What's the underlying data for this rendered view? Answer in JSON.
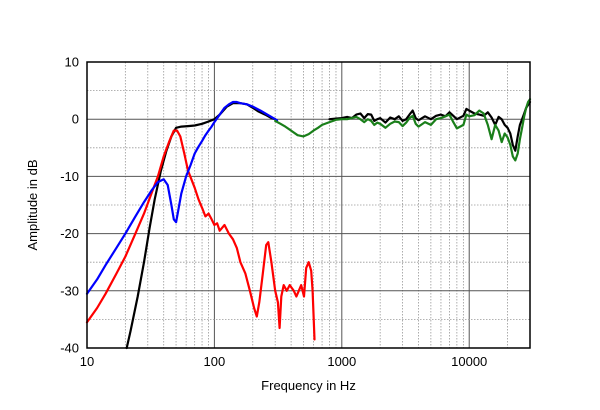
{
  "chart_data": {
    "type": "line",
    "title": "",
    "xlabel": "Frequency in Hz",
    "ylabel": "Amplitude in dB",
    "xscale": "log",
    "xlim": [
      10,
      30000
    ],
    "ylim": [
      -40,
      10
    ],
    "x_ticks": [
      {
        "value": 10,
        "label": "10"
      },
      {
        "value": 100,
        "label": "100"
      },
      {
        "value": 1000,
        "label": "1000"
      },
      {
        "value": 10000,
        "label": "10000"
      }
    ],
    "y_ticks": [
      {
        "value": 10,
        "label": "10"
      },
      {
        "value": 0,
        "label": "0"
      },
      {
        "value": -10,
        "label": "-10"
      },
      {
        "value": -20,
        "label": "-20"
      },
      {
        "value": -30,
        "label": "-30"
      },
      {
        "value": -40,
        "label": "-40"
      }
    ],
    "grid": true,
    "legend": "none",
    "series": [
      {
        "name": "black",
        "color": "#000000",
        "points": [
          [
            20.5,
            -40
          ],
          [
            22,
            -37
          ],
          [
            25,
            -31
          ],
          [
            28,
            -25
          ],
          [
            31,
            -19
          ],
          [
            34,
            -14
          ],
          [
            38,
            -9
          ],
          [
            42,
            -5.5
          ],
          [
            46,
            -3
          ],
          [
            50,
            -1.5
          ],
          [
            55,
            -1.3
          ],
          [
            62,
            -1.2
          ],
          [
            70,
            -1.1
          ],
          [
            80,
            -0.8
          ],
          [
            90,
            -0.4
          ],
          [
            100,
            0
          ],
          [
            110,
            0.8
          ],
          [
            125,
            2.2
          ],
          [
            140,
            2.8
          ],
          [
            160,
            2.8
          ],
          [
            180,
            2.6
          ],
          [
            200,
            2
          ],
          [
            220,
            1.4
          ],
          [
            250,
            0.8
          ],
          [
            280,
            0.2
          ],
          [
            300,
            0
          ]
        ]
      },
      {
        "name": "red",
        "color": "#ff0000",
        "points": [
          [
            10,
            -35.5
          ],
          [
            12,
            -33
          ],
          [
            14,
            -30.5
          ],
          [
            17,
            -27
          ],
          [
            20,
            -24
          ],
          [
            24,
            -20
          ],
          [
            28,
            -16.5
          ],
          [
            32,
            -13
          ],
          [
            36,
            -10
          ],
          [
            40,
            -6.5
          ],
          [
            44,
            -4
          ],
          [
            48,
            -2
          ],
          [
            51,
            -2
          ],
          [
            54,
            -3
          ],
          [
            58,
            -6
          ],
          [
            62,
            -9
          ],
          [
            66,
            -10.5
          ],
          [
            70,
            -12
          ],
          [
            75,
            -14
          ],
          [
            80,
            -15.5
          ],
          [
            85,
            -17
          ],
          [
            90,
            -16.5
          ],
          [
            95,
            -17.5
          ],
          [
            100,
            -18.5
          ],
          [
            105,
            -18.2
          ],
          [
            110,
            -19.5
          ],
          [
            120,
            -18.5
          ],
          [
            130,
            -20
          ],
          [
            140,
            -21
          ],
          [
            150,
            -22.5
          ],
          [
            160,
            -25
          ],
          [
            175,
            -27
          ],
          [
            190,
            -30
          ],
          [
            205,
            -33
          ],
          [
            215,
            -34.5
          ],
          [
            225,
            -32
          ],
          [
            240,
            -27
          ],
          [
            255,
            -22
          ],
          [
            265,
            -21.5
          ],
          [
            280,
            -25
          ],
          [
            300,
            -30
          ],
          [
            315,
            -32
          ],
          [
            325,
            -36.5
          ],
          [
            335,
            -31
          ],
          [
            350,
            -29
          ],
          [
            370,
            -30
          ],
          [
            390,
            -29
          ],
          [
            420,
            -30
          ],
          [
            440,
            -31
          ],
          [
            460,
            -30
          ],
          [
            480,
            -29
          ],
          [
            505,
            -31
          ],
          [
            525,
            -26
          ],
          [
            550,
            -25
          ],
          [
            575,
            -26.5
          ],
          [
            590,
            -30
          ],
          [
            600,
            -34
          ],
          [
            610,
            -38.5
          ]
        ]
      },
      {
        "name": "blue",
        "color": "#0000ff",
        "points": [
          [
            10,
            -30.5
          ],
          [
            12,
            -28
          ],
          [
            14,
            -25.5
          ],
          [
            17,
            -22.5
          ],
          [
            20,
            -20
          ],
          [
            24,
            -17
          ],
          [
            28,
            -14.5
          ],
          [
            32,
            -12.5
          ],
          [
            36,
            -11
          ],
          [
            40,
            -10.5
          ],
          [
            43,
            -11.5
          ],
          [
            46,
            -15
          ],
          [
            48,
            -17.5
          ],
          [
            50,
            -18
          ],
          [
            52,
            -16
          ],
          [
            55,
            -13
          ],
          [
            60,
            -10
          ],
          [
            65,
            -8
          ],
          [
            70,
            -6
          ],
          [
            75,
            -4.8
          ],
          [
            80,
            -3.8
          ],
          [
            85,
            -2.8
          ],
          [
            90,
            -2
          ],
          [
            95,
            -1.3
          ],
          [
            100,
            -0.5
          ],
          [
            110,
            0.8
          ],
          [
            120,
            2
          ],
          [
            130,
            2.6
          ],
          [
            140,
            3
          ],
          [
            150,
            3
          ],
          [
            160,
            2.8
          ],
          [
            180,
            2.6
          ],
          [
            200,
            2.2
          ],
          [
            230,
            1.5
          ],
          [
            260,
            0.8
          ],
          [
            290,
            0.2
          ],
          [
            310,
            -0.2
          ]
        ]
      },
      {
        "name": "black-high",
        "color": "#000000",
        "points": [
          [
            800,
            0
          ],
          [
            900,
            0.1
          ],
          [
            1000,
            0.2
          ],
          [
            1100,
            0.4
          ],
          [
            1200,
            0.2
          ],
          [
            1300,
            0.8
          ],
          [
            1400,
            1
          ],
          [
            1500,
            0.2
          ],
          [
            1600,
            0.9
          ],
          [
            1700,
            0.8
          ],
          [
            1800,
            -0.3
          ],
          [
            1900,
            0
          ],
          [
            2000,
            0.2
          ],
          [
            2200,
            -0.6
          ],
          [
            2400,
            0.3
          ],
          [
            2600,
            0
          ],
          [
            2800,
            0.5
          ],
          [
            3000,
            -0.3
          ],
          [
            3200,
            0
          ],
          [
            3400,
            0.8
          ],
          [
            3600,
            1.5
          ],
          [
            3800,
            0.2
          ],
          [
            4000,
            -0.2
          ],
          [
            4500,
            0.5
          ],
          [
            5000,
            0
          ],
          [
            5500,
            0.6
          ],
          [
            6000,
            0.8
          ],
          [
            6500,
            0.5
          ],
          [
            7000,
            1.2
          ],
          [
            8000,
            0
          ],
          [
            9000,
            0.6
          ],
          [
            9500,
            1.8
          ],
          [
            10000,
            1.5
          ],
          [
            11000,
            1
          ],
          [
            12000,
            0.8
          ],
          [
            13000,
            0.6
          ],
          [
            14000,
            1.2
          ],
          [
            15000,
            0.3
          ],
          [
            16000,
            -1
          ],
          [
            17000,
            0.4
          ],
          [
            18000,
            0
          ],
          [
            19000,
            -1
          ],
          [
            20000,
            -1.5
          ],
          [
            21000,
            -2.5
          ],
          [
            22000,
            -4.5
          ],
          [
            23000,
            -5.5
          ],
          [
            24000,
            -3
          ],
          [
            25000,
            -1
          ],
          [
            26000,
            0
          ],
          [
            27000,
            1
          ],
          [
            28000,
            2
          ],
          [
            29000,
            2.5
          ],
          [
            30000,
            3
          ]
        ]
      },
      {
        "name": "green",
        "color": "#1a7f1a",
        "points": [
          [
            300,
            -0.3
          ],
          [
            330,
            -0.8
          ],
          [
            360,
            -1.3
          ],
          [
            400,
            -2
          ],
          [
            450,
            -2.8
          ],
          [
            500,
            -3
          ],
          [
            550,
            -2.6
          ],
          [
            600,
            -2
          ],
          [
            650,
            -1.5
          ],
          [
            700,
            -1
          ],
          [
            800,
            -0.5
          ],
          [
            900,
            -0.1
          ],
          [
            1000,
            0
          ],
          [
            1100,
            0
          ],
          [
            1200,
            0.2
          ],
          [
            1300,
            0.4
          ],
          [
            1400,
            0
          ],
          [
            1500,
            -0.5
          ],
          [
            1600,
            0
          ],
          [
            1700,
            -0.3
          ],
          [
            1800,
            -1
          ],
          [
            1900,
            -0.6
          ],
          [
            2000,
            -0.8
          ],
          [
            2200,
            -1.5
          ],
          [
            2400,
            -0.8
          ],
          [
            2600,
            -0.4
          ],
          [
            2800,
            -0.5
          ],
          [
            3000,
            -1.2
          ],
          [
            3200,
            -0.6
          ],
          [
            3400,
            0.2
          ],
          [
            3600,
            0.6
          ],
          [
            3800,
            -0.8
          ],
          [
            4000,
            -1.3
          ],
          [
            4500,
            -0.5
          ],
          [
            5000,
            -1
          ],
          [
            5500,
            0
          ],
          [
            6000,
            0.2
          ],
          [
            6500,
            0.5
          ],
          [
            7000,
            0.8
          ],
          [
            7500,
            -0.5
          ],
          [
            8000,
            -1.6
          ],
          [
            9000,
            -1
          ],
          [
            9500,
            0.8
          ],
          [
            10000,
            0.5
          ],
          [
            11000,
            0.7
          ],
          [
            12000,
            1.5
          ],
          [
            13000,
            1
          ],
          [
            14000,
            -1
          ],
          [
            15000,
            -3.5
          ],
          [
            16000,
            -1
          ],
          [
            17000,
            -2
          ],
          [
            18000,
            -4
          ],
          [
            19000,
            -2.5
          ],
          [
            20000,
            -3.2
          ],
          [
            21000,
            -4.5
          ],
          [
            22000,
            -6.5
          ],
          [
            23000,
            -7.2
          ],
          [
            24000,
            -6
          ],
          [
            25000,
            -3.5
          ],
          [
            26000,
            -1.5
          ],
          [
            27000,
            0.5
          ],
          [
            28000,
            2
          ],
          [
            29000,
            3
          ],
          [
            30000,
            3.5
          ]
        ]
      }
    ]
  }
}
